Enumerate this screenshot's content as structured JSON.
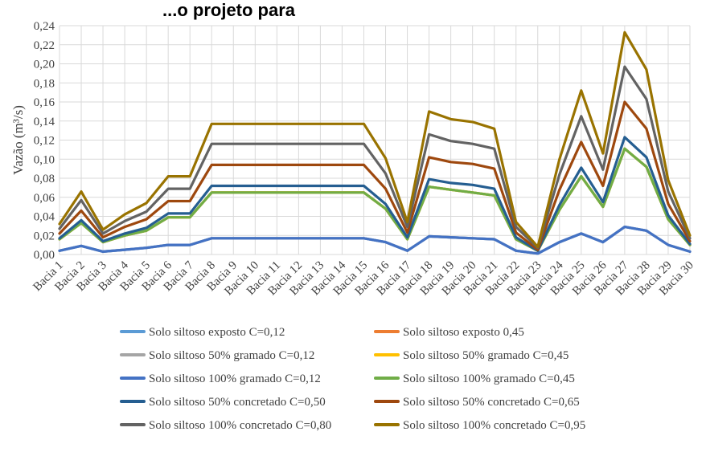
{
  "chart_data": {
    "type": "line",
    "title": "...o projeto para",
    "ylabel": "Vazão (m³/s)",
    "xlabel": "",
    "ylim": [
      0,
      0.24
    ],
    "yticks": [
      "0,00",
      "0,02",
      "0,04",
      "0,06",
      "0,08",
      "0,10",
      "0,12",
      "0,14",
      "0,16",
      "0,18",
      "0,20",
      "0,22",
      "0,24"
    ],
    "grid": true,
    "legend": "bottom",
    "categories": [
      "Bacia 1",
      "Bacia 2",
      "Bacia 3",
      "Bacia 4",
      "Bacia 5",
      "Bacia 6",
      "Bacia 7",
      "Bacia 8",
      "Bacia 9",
      "Bacia 10",
      "Bacia 11",
      "Bacia 12",
      "Bacia 13",
      "Bacia 14",
      "Bacia 15",
      "Bacia 16",
      "Bacia 17",
      "Bacia 18",
      "Bacia 19",
      "Bacia 20",
      "Bacia 21",
      "Bacia 22",
      "Bacia 23",
      "Bacia 24",
      "Bacia 25",
      "Bacia 26",
      "Bacia 27",
      "Bacia 28",
      "Bacia 29",
      "Bacia 30"
    ],
    "series": [
      {
        "name": "Solo siltoso exposto C=0,12",
        "color": "#5B9BD5",
        "values": [
          0.004,
          0.009,
          0.003,
          0.005,
          0.007,
          0.01,
          0.01,
          0.017,
          0.017,
          0.017,
          0.017,
          0.017,
          0.017,
          0.017,
          0.017,
          0.013,
          0.004,
          0.019,
          0.018,
          0.017,
          0.016,
          0.004,
          0.001,
          0.013,
          0.022,
          0.013,
          0.029,
          0.025,
          0.01,
          0.003
        ]
      },
      {
        "name": "Solo  siltoso exposto 0,45",
        "color": "#ED7D31",
        "values": [
          0.016,
          0.033,
          0.013,
          0.02,
          0.025,
          0.039,
          0.039,
          0.065,
          0.065,
          0.065,
          0.065,
          0.065,
          0.065,
          0.065,
          0.065,
          0.048,
          0.016,
          0.071,
          0.068,
          0.065,
          0.062,
          0.016,
          0.004,
          0.047,
          0.082,
          0.05,
          0.111,
          0.092,
          0.037,
          0.01
        ]
      },
      {
        "name": "Solo siltoso 50% gramado C=0,12",
        "color": "#A5A5A5",
        "values": [
          0.004,
          0.009,
          0.003,
          0.005,
          0.007,
          0.01,
          0.01,
          0.017,
          0.017,
          0.017,
          0.017,
          0.017,
          0.017,
          0.017,
          0.017,
          0.013,
          0.004,
          0.019,
          0.018,
          0.017,
          0.016,
          0.004,
          0.001,
          0.013,
          0.022,
          0.013,
          0.029,
          0.025,
          0.01,
          0.003
        ]
      },
      {
        "name": "Solo siltoso 50% gramado C=0,45",
        "color": "#FFC000",
        "values": [
          0.016,
          0.033,
          0.013,
          0.02,
          0.025,
          0.039,
          0.039,
          0.065,
          0.065,
          0.065,
          0.065,
          0.065,
          0.065,
          0.065,
          0.065,
          0.048,
          0.016,
          0.071,
          0.068,
          0.065,
          0.062,
          0.016,
          0.004,
          0.047,
          0.082,
          0.05,
          0.111,
          0.092,
          0.037,
          0.01
        ]
      },
      {
        "name": "Solo siltoso 100% gramado C=0,12",
        "color": "#4472C4",
        "values": [
          0.004,
          0.009,
          0.003,
          0.005,
          0.007,
          0.01,
          0.01,
          0.017,
          0.017,
          0.017,
          0.017,
          0.017,
          0.017,
          0.017,
          0.017,
          0.013,
          0.004,
          0.019,
          0.018,
          0.017,
          0.016,
          0.004,
          0.001,
          0.013,
          0.022,
          0.013,
          0.029,
          0.025,
          0.01,
          0.003
        ]
      },
      {
        "name": "Solo siltoso 100% gramado C=0,45",
        "color": "#70AD47",
        "values": [
          0.016,
          0.033,
          0.013,
          0.02,
          0.025,
          0.039,
          0.039,
          0.065,
          0.065,
          0.065,
          0.065,
          0.065,
          0.065,
          0.065,
          0.065,
          0.048,
          0.016,
          0.071,
          0.068,
          0.065,
          0.062,
          0.016,
          0.004,
          0.047,
          0.082,
          0.05,
          0.111,
          0.092,
          0.037,
          0.01
        ]
      },
      {
        "name": "Solo siltoso 50% concretado C=0,50",
        "color": "#255E91",
        "values": [
          0.017,
          0.036,
          0.014,
          0.022,
          0.028,
          0.043,
          0.043,
          0.072,
          0.072,
          0.072,
          0.072,
          0.072,
          0.072,
          0.072,
          0.072,
          0.053,
          0.018,
          0.079,
          0.075,
          0.073,
          0.069,
          0.018,
          0.004,
          0.052,
          0.091,
          0.055,
          0.123,
          0.102,
          0.041,
          0.011
        ]
      },
      {
        "name": "Solo siltoso 50% concretado C=0,65",
        "color": "#9E480E",
        "values": [
          0.022,
          0.046,
          0.018,
          0.029,
          0.037,
          0.056,
          0.056,
          0.094,
          0.094,
          0.094,
          0.094,
          0.094,
          0.094,
          0.094,
          0.094,
          0.069,
          0.023,
          0.102,
          0.097,
          0.095,
          0.09,
          0.023,
          0.005,
          0.068,
          0.118,
          0.072,
          0.16,
          0.132,
          0.053,
          0.014
        ]
      },
      {
        "name": "Solo siltoso 100% concretado C=0,80",
        "color": "#636363",
        "values": [
          0.027,
          0.057,
          0.022,
          0.035,
          0.045,
          0.069,
          0.069,
          0.116,
          0.116,
          0.116,
          0.116,
          0.116,
          0.116,
          0.116,
          0.116,
          0.085,
          0.029,
          0.126,
          0.119,
          0.116,
          0.111,
          0.029,
          0.007,
          0.084,
          0.145,
          0.089,
          0.197,
          0.163,
          0.066,
          0.017
        ]
      },
      {
        "name": "Solo siltoso 100% concretado C=0,95",
        "color": "#997300",
        "values": [
          0.032,
          0.066,
          0.026,
          0.042,
          0.054,
          0.082,
          0.082,
          0.137,
          0.137,
          0.137,
          0.137,
          0.137,
          0.137,
          0.137,
          0.137,
          0.101,
          0.034,
          0.15,
          0.142,
          0.139,
          0.132,
          0.034,
          0.008,
          0.1,
          0.172,
          0.106,
          0.233,
          0.194,
          0.078,
          0.02
        ]
      }
    ]
  }
}
